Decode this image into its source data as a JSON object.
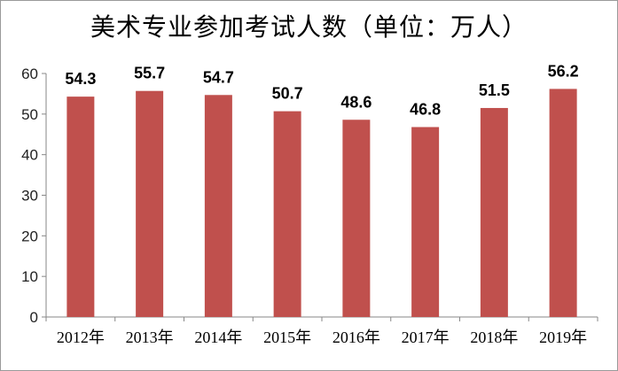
{
  "chart_data": {
    "type": "bar",
    "title": "美术专业参加考试人数（单位：万人）",
    "xlabel": "",
    "ylabel": "",
    "categories": [
      "2012年",
      "2013年",
      "2014年",
      "2015年",
      "2016年",
      "2017年",
      "2018年",
      "2019年"
    ],
    "values": [
      54.3,
      55.7,
      54.7,
      50.7,
      48.6,
      46.8,
      51.5,
      56.2
    ],
    "data_labels": [
      "54.3",
      "55.7",
      "54.7",
      "50.7",
      "48.6",
      "46.8",
      "51.5",
      "56.2"
    ],
    "ylim": [
      0,
      60
    ],
    "yticks": [
      "0",
      "10",
      "20",
      "30",
      "40",
      "50",
      "60"
    ],
    "grid": false,
    "legend": "none",
    "bar_color": "#c0504d",
    "axis_color": "#878787"
  }
}
